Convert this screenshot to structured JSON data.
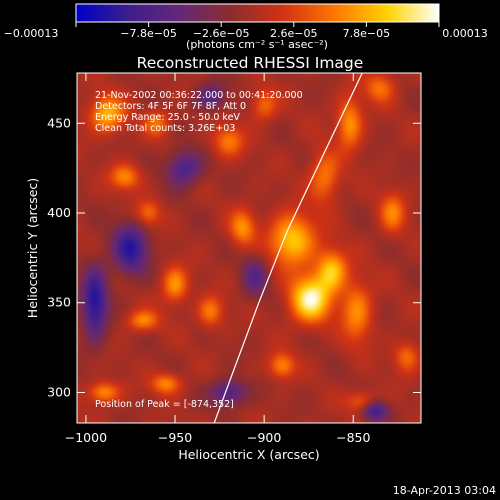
{
  "chart_data": {
    "type": "heatmap",
    "title": "Reconstructed RHESSI Image",
    "xlabel": "Heliocentric X (arcsec)",
    "ylabel": "Heliocentric Y (arcsec)",
    "xlim": [
      -1005,
      -812
    ],
    "ylim": [
      283,
      478
    ],
    "xticks": [
      {
        "value": -1000,
        "label": "−1000"
      },
      {
        "value": -950,
        "label": "−950"
      },
      {
        "value": -900,
        "label": "−900"
      },
      {
        "value": -850,
        "label": "−850"
      }
    ],
    "yticks": [
      {
        "value": 300,
        "label": "300"
      },
      {
        "value": 350,
        "label": "350"
      },
      {
        "value": 400,
        "label": "400"
      },
      {
        "value": 450,
        "label": "450"
      }
    ],
    "colorbar": {
      "min": -0.00013,
      "max": 0.00013,
      "ticks": [
        {
          "value": -0.00013,
          "label": "−0.00013"
        },
        {
          "value": -7.8e-05,
          "label": "−7.8e−05"
        },
        {
          "value": -2.6e-05,
          "label": "−2.6e−05"
        },
        {
          "value": 2.6e-05,
          "label": "2.6e−05"
        },
        {
          "value": 7.8e-05,
          "label": "7.8e−05"
        },
        {
          "value": 0.00013,
          "label": "0.00013"
        }
      ],
      "unit_label": "(photons cm⁻² s⁻¹ asec⁻²)",
      "colors": [
        "#0000c8",
        "#3c1e8c",
        "#642878",
        "#8c2d2d",
        "#d23214",
        "#ff7800",
        "#ffd200",
        "#ffffff"
      ]
    },
    "annotations": [
      "21-Nov-2002 00:36:22.000 to 00:41:20.000",
      "Detectors: 4F 5F 6F 7F 8F, Att 0",
      "Energy Range: 25.0 - 50.0 keV",
      "Clean     Total counts: 3.26E+03"
    ],
    "peak_label": "Position of Peak = [-874,352]",
    "peak": {
      "x": -874,
      "y": 352
    },
    "limb": [
      {
        "x": -928,
        "y": 283
      },
      {
        "x": -918,
        "y": 310
      },
      {
        "x": -903,
        "y": 350
      },
      {
        "x": -887,
        "y": 390
      },
      {
        "x": -868,
        "y": 430
      },
      {
        "x": -845,
        "y": 478
      }
    ],
    "sources": [
      {
        "x": -874,
        "y": 352,
        "v": 1.0,
        "sx": 8,
        "sy": 9
      },
      {
        "x": -884,
        "y": 385,
        "v": 0.8,
        "sx": 9,
        "sy": 10
      },
      {
        "x": -862,
        "y": 368,
        "v": 0.75,
        "sx": 6,
        "sy": 8
      },
      {
        "x": -848,
        "y": 345,
        "v": 0.55,
        "sx": 6,
        "sy": 12
      },
      {
        "x": -866,
        "y": 420,
        "v": 0.5,
        "sx": 6,
        "sy": 10
      },
      {
        "x": -852,
        "y": 450,
        "v": 0.6,
        "sx": 5,
        "sy": 10
      },
      {
        "x": -835,
        "y": 470,
        "v": 0.45,
        "sx": 6,
        "sy": 6
      },
      {
        "x": -988,
        "y": 455,
        "v": 0.7,
        "sx": 7,
        "sy": 7
      },
      {
        "x": -978,
        "y": 420,
        "v": 0.55,
        "sx": 6,
        "sy": 5
      },
      {
        "x": -960,
        "y": 450,
        "v": 0.45,
        "sx": 5,
        "sy": 5
      },
      {
        "x": -965,
        "y": 400,
        "v": 0.45,
        "sx": 5,
        "sy": 5
      },
      {
        "x": -950,
        "y": 360,
        "v": 0.6,
        "sx": 5,
        "sy": 7
      },
      {
        "x": -968,
        "y": 340,
        "v": 0.55,
        "sx": 6,
        "sy": 4
      },
      {
        "x": -930,
        "y": 345,
        "v": 0.5,
        "sx": 5,
        "sy": 6
      },
      {
        "x": -912,
        "y": 392,
        "v": 0.55,
        "sx": 5,
        "sy": 7
      },
      {
        "x": -920,
        "y": 440,
        "v": 0.5,
        "sx": 6,
        "sy": 6
      },
      {
        "x": -900,
        "y": 460,
        "v": 0.45,
        "sx": 5,
        "sy": 6
      },
      {
        "x": -990,
        "y": 300,
        "v": 0.6,
        "sx": 6,
        "sy": 4
      },
      {
        "x": -955,
        "y": 305,
        "v": 0.55,
        "sx": 6,
        "sy": 4
      },
      {
        "x": -890,
        "y": 315,
        "v": 0.55,
        "sx": 5,
        "sy": 5
      },
      {
        "x": -828,
        "y": 400,
        "v": 0.5,
        "sx": 5,
        "sy": 8
      },
      {
        "x": -820,
        "y": 320,
        "v": 0.45,
        "sx": 5,
        "sy": 6
      },
      {
        "x": -845,
        "y": 295,
        "v": 0.45,
        "sx": 6,
        "sy": 4
      },
      {
        "x": -975,
        "y": 380,
        "v": -0.75,
        "sx": 7,
        "sy": 10
      },
      {
        "x": -995,
        "y": 350,
        "v": -0.8,
        "sx": 5,
        "sy": 14
      },
      {
        "x": -945,
        "y": 425,
        "v": -0.6,
        "sx": 7,
        "sy": 7
      },
      {
        "x": -920,
        "y": 300,
        "v": -0.6,
        "sx": 7,
        "sy": 5
      },
      {
        "x": -905,
        "y": 365,
        "v": -0.45,
        "sx": 5,
        "sy": 8
      },
      {
        "x": -838,
        "y": 290,
        "v": -0.7,
        "sx": 5,
        "sy": 4
      },
      {
        "x": -930,
        "y": 465,
        "v": -0.5,
        "sx": 6,
        "sy": 5
      }
    ]
  },
  "footer": {
    "date": "18-Apr-2013 03:04"
  }
}
